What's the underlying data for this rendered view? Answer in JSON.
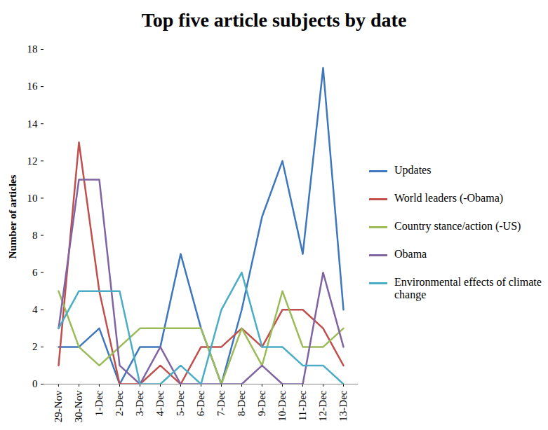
{
  "chart_data": {
    "type": "line",
    "title": "Top five article subjects by date",
    "y_label": "Number of articles",
    "categories": [
      "29-Nov",
      "30-Nov",
      "1-Dec",
      "2-Dec",
      "3-Dec",
      "4-Dec",
      "5-Dec",
      "6-Dec",
      "7-Dec",
      "8-Dec",
      "9-Dec",
      "10-Dec",
      "11-Dec",
      "12-Dec",
      "13-Dec"
    ],
    "series": [
      {
        "name": "Updates",
        "color": "#3f77bc",
        "values": [
          2,
          2,
          3,
          0,
          2,
          2,
          7,
          3,
          0,
          4,
          9,
          12,
          7,
          17,
          4
        ]
      },
      {
        "name": "World leaders (-Obama)",
        "color": "#c0504d",
        "values": [
          1,
          13,
          5,
          0,
          0,
          1,
          0,
          2,
          2,
          3,
          2,
          4,
          4,
          3,
          1
        ]
      },
      {
        "name": "Country stance/action (-US)",
        "color": "#9bbb59",
        "values": [
          5,
          2,
          1,
          2,
          3,
          3,
          3,
          3,
          0,
          3,
          1,
          5,
          2,
          2,
          3
        ]
      },
      {
        "name": "Obama",
        "color": "#8064a2",
        "values": [
          3,
          11,
          11,
          1,
          0,
          2,
          0,
          0,
          0,
          0,
          1,
          0,
          0,
          6,
          2
        ]
      },
      {
        "name": "Environmental effects of climate change",
        "color": "#4bacc6",
        "values": [
          3,
          5,
          5,
          5,
          0,
          0,
          1,
          0,
          4,
          6,
          2,
          2,
          1,
          1,
          0
        ]
      }
    ],
    "ylim": [
      0,
      18
    ],
    "yticks": [
      0,
      2,
      4,
      6,
      8,
      10,
      12,
      14,
      16,
      18
    ],
    "grid": false,
    "legend": "right"
  }
}
